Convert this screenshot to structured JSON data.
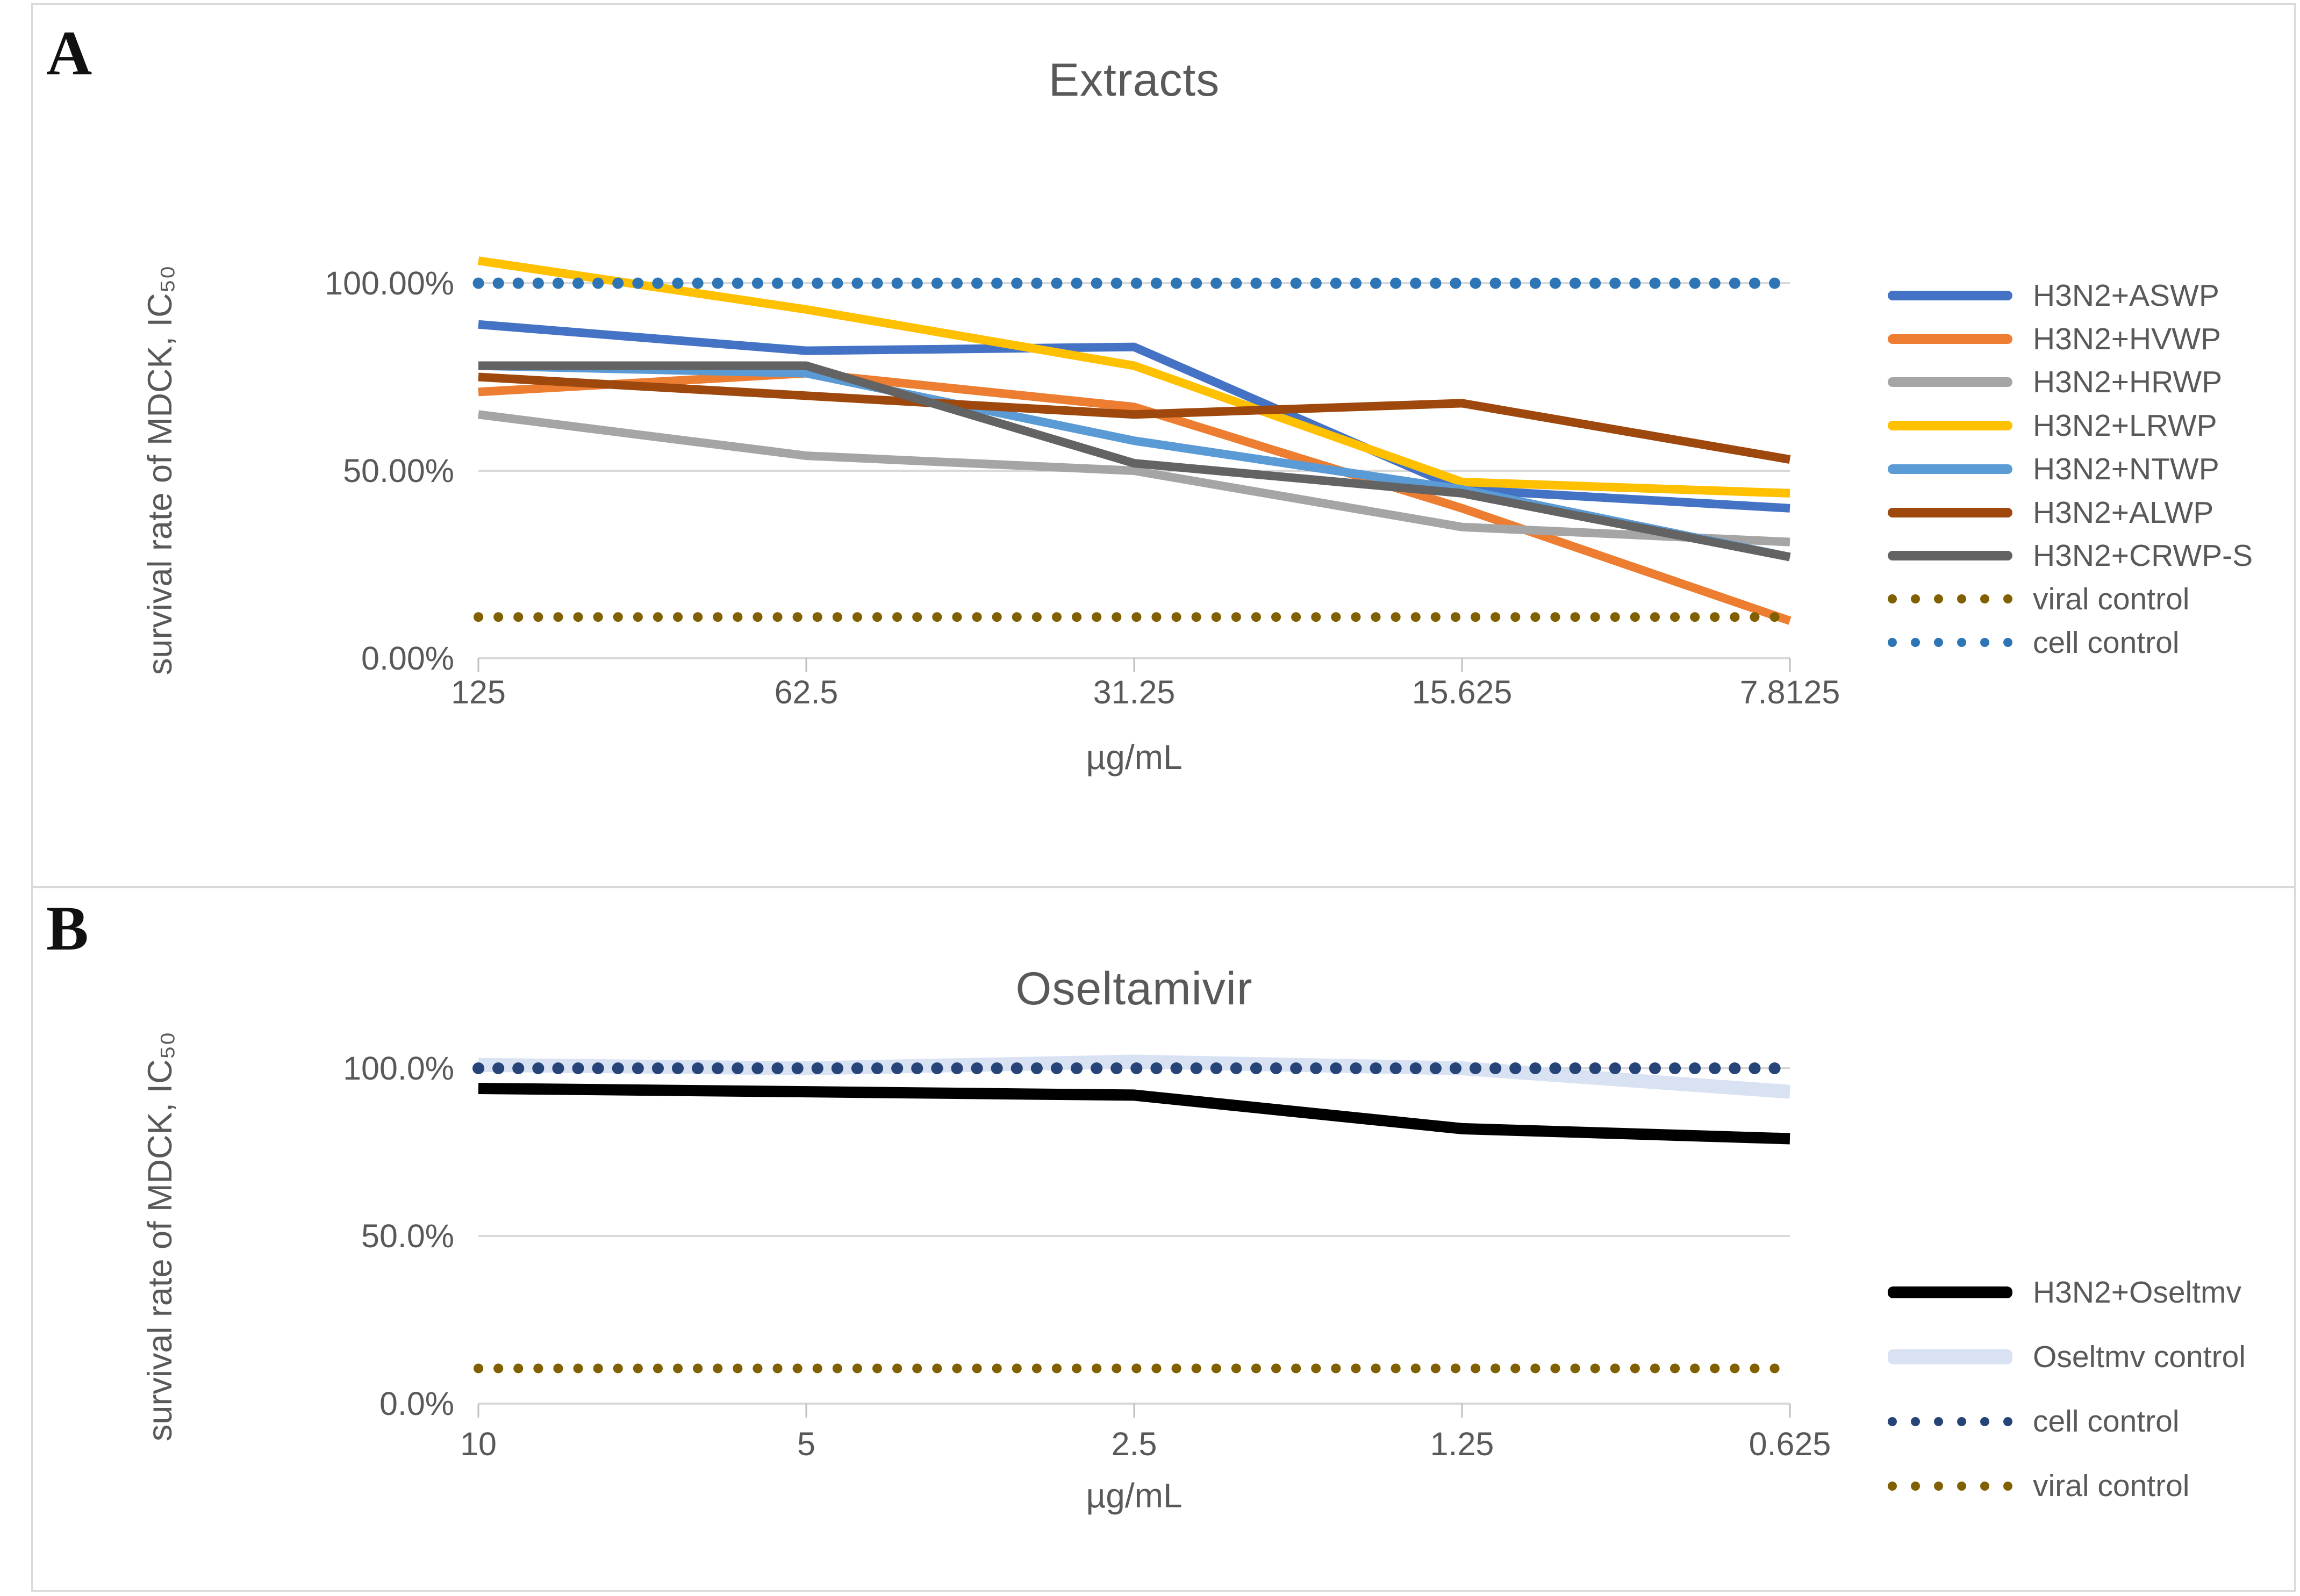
{
  "figure": {
    "panel_a_label": "A",
    "panel_b_label": "B"
  },
  "colors": {
    "text_gray": "#595959",
    "gridline": "#D9D9D9",
    "tick": "#BFBFBF",
    "aswp_blue": "#4472C4",
    "hvwp_orange": "#ED7D31",
    "hrwp_gray": "#A5A5A5",
    "lrwp_gold": "#FFC000",
    "ntwp_light_blue": "#5B9BD5",
    "alwp_brown": "#9E480E",
    "crwp_dark_gray": "#636363",
    "viral_control_dark_yellow": "#806000",
    "cell_control_blue_panel_a": "#2E75B6",
    "cell_control_navy_panel_b": "#264478",
    "oseltmv_black": "#000000",
    "oseltmv_control_light_blue": "#D9E2F3"
  },
  "chart_data": [
    {
      "type": "line",
      "title": "Extracts",
      "xlabel": "µg/mL",
      "ylabel": "survival rate of MDCK, IC₅₀",
      "categories": [
        "125",
        "62.5",
        "31.25",
        "15.625",
        "7.8125"
      ],
      "y_tick_labels": [
        "0.00%",
        "50.00%",
        "100.00%"
      ],
      "y_tick_values": [
        0,
        50,
        100
      ],
      "ylim": [
        0,
        112
      ],
      "grid": "horizontal",
      "legend_position": "right",
      "series": [
        {
          "name": "H3N2+ASWP",
          "color": "#4472C4",
          "style": "solid",
          "values": [
            89,
            82,
            83,
            45,
            40
          ]
        },
        {
          "name": "H3N2+HVWP",
          "color": "#ED7D31",
          "style": "solid",
          "values": [
            71,
            76,
            67,
            40,
            10
          ]
        },
        {
          "name": "H3N2+HRWP",
          "color": "#A5A5A5",
          "style": "solid",
          "values": [
            65,
            54,
            50,
            35,
            31
          ]
        },
        {
          "name": "H3N2+LRWP",
          "color": "#FFC000",
          "style": "solid",
          "values": [
            106,
            93,
            78,
            47,
            44
          ]
        },
        {
          "name": "H3N2+NTWP",
          "color": "#5B9BD5",
          "style": "solid",
          "values": [
            78,
            76,
            58,
            45,
            27
          ]
        },
        {
          "name": "H3N2+ALWP",
          "color": "#9E480E",
          "style": "solid",
          "values": [
            75,
            70,
            65,
            68,
            53
          ]
        },
        {
          "name": "H3N2+CRWP-S",
          "color": "#636363",
          "style": "solid",
          "values": [
            78,
            78,
            52,
            44,
            27
          ]
        },
        {
          "name": "viral control",
          "color": "#806000",
          "style": "dotted",
          "values": [
            11,
            11,
            11,
            11,
            11
          ]
        },
        {
          "name": "cell control",
          "color": "#2E75B6",
          "style": "dotted",
          "values": [
            100,
            100,
            100,
            100,
            100
          ]
        }
      ]
    },
    {
      "type": "line",
      "title": "Oseltamivir",
      "xlabel": "µg/mL",
      "ylabel": "survival rate of MDCK, IC₅₀",
      "categories": [
        "10",
        "5",
        "2.5",
        "1.25",
        "0.625"
      ],
      "y_tick_labels": [
        "0.0%",
        "50.0%",
        "100.0%"
      ],
      "y_tick_values": [
        0,
        50,
        100
      ],
      "ylim": [
        0,
        112
      ],
      "grid": "horizontal",
      "legend_position": "right",
      "series": [
        {
          "name": "H3N2+Oseltmv",
          "color": "#000000",
          "style": "solid",
          "values": [
            94,
            93,
            92,
            82,
            79
          ]
        },
        {
          "name": "Oseltmv control",
          "color": "#D9E2F3",
          "style": "solid",
          "values": [
            101,
            100,
            102,
            100,
            93
          ]
        },
        {
          "name": "cell control",
          "color": "#264478",
          "style": "dotted",
          "values": [
            100,
            100,
            100,
            100,
            100
          ]
        },
        {
          "name": "viral control",
          "color": "#806000",
          "style": "dotted",
          "values": [
            10.5,
            10.5,
            10.5,
            10.5,
            10.5
          ]
        }
      ]
    }
  ]
}
